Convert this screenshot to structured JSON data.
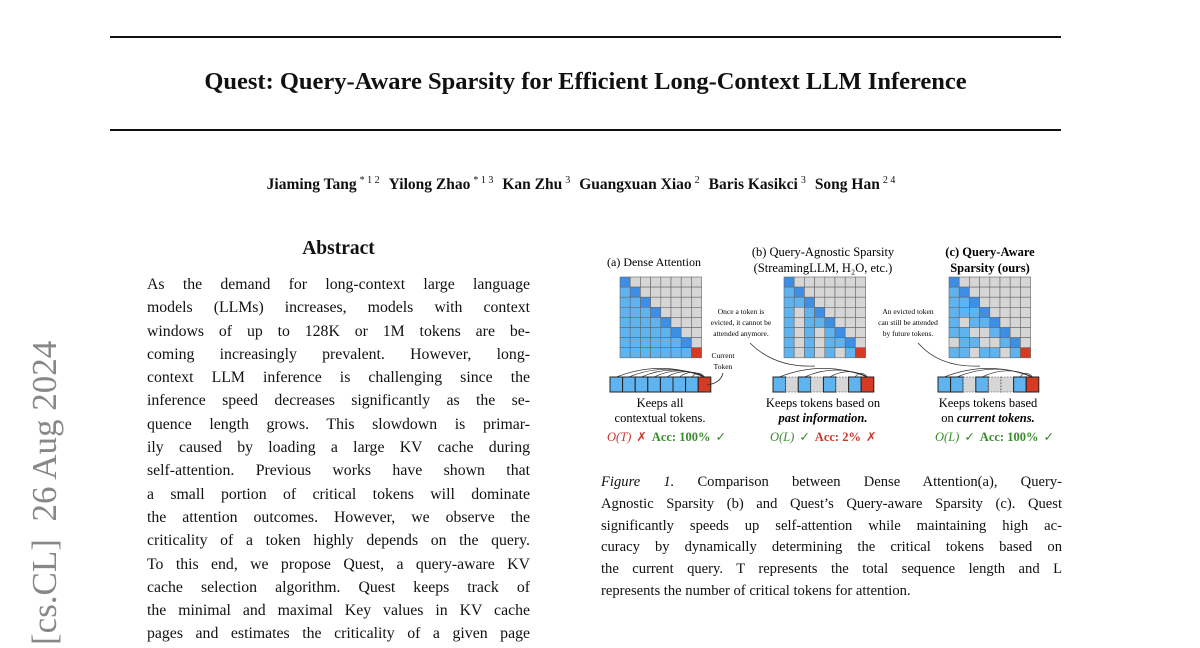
{
  "paper": {
    "title": "Quest: Query-Aware Sparsity for Efficient Long-Context LLM Inference",
    "authors": [
      {
        "name": "Jiaming Tang",
        "sup": "* 1 2"
      },
      {
        "name": "Yilong Zhao",
        "sup": "* 1 3"
      },
      {
        "name": "Kan Zhu",
        "sup": "3"
      },
      {
        "name": "Guangxuan Xiao",
        "sup": "2"
      },
      {
        "name": "Baris Kasikci",
        "sup": "3"
      },
      {
        "name": "Song Han",
        "sup": "2 4"
      }
    ],
    "arxiv_stamp": "[cs.CL]  26 Aug 2024",
    "abstract": {
      "heading": "Abstract",
      "lines": [
        "As the demand for long-context large language",
        "models (LLMs) increases, models with context",
        "windows of up to 128K or 1M tokens are be-",
        "coming increasingly prevalent. However, long-",
        "context LLM inference is challenging since the",
        "inference speed decreases significantly as the se-",
        "quence length grows. This slowdown is primar-",
        "ily caused by loading a large KV cache during",
        "self-attention. Previous works have shown that",
        "a small portion of critical tokens will dominate",
        "the attention outcomes. However, we observe the",
        "criticality of a token highly depends on the query.",
        "To this end, we propose Quest, a query-aware KV",
        "cache selection algorithm. Quest keeps track of",
        "the minimal and maximal Key values in KV cache",
        "pages and estimates the criticality of a given page"
      ]
    },
    "figure": {
      "panel_a": {
        "title": "(a) Dense Attention",
        "desc1": "Keeps all",
        "desc2": "contextual tokens.",
        "complexity": "O(T)",
        "complexity_mark": "✗",
        "acc": "Acc: 100%",
        "acc_mark": "✓"
      },
      "panel_b": {
        "title1": "(b) Query-Agnostic Sparsity",
        "title2": "(StreamingLLM, H₂O, etc.)",
        "desc1": "Keeps tokens based on",
        "desc2": "past information.",
        "complexity": "O(L)",
        "complexity_mark": "✓",
        "acc": "Acc: 2%",
        "acc_mark": "✗"
      },
      "panel_c": {
        "title1": "(c) Query-Aware",
        "title2": "Sparsity (ours)",
        "desc1": "Keeps tokens based",
        "desc2_prefix": "on ",
        "desc2": "current tokens.",
        "complexity": "O(L)",
        "complexity_mark": "✓",
        "acc": "Acc: 100%",
        "acc_mark": "✓"
      },
      "note_b": [
        "Once a token is",
        "evicted, it cannot be",
        "attended anymore."
      ],
      "note_c": [
        "An evicted token",
        "can still be attended",
        "by future tokens."
      ],
      "current_token": [
        "Current",
        "Token"
      ],
      "colors": {
        "kept": "#5fb4f0",
        "diag": "#3d8fe6",
        "evicted": "#d6d6d6",
        "current": "#d63a22",
        "good": "#3a8a2e",
        "bad": "#c9372c"
      }
    },
    "caption": {
      "label": "Figure 1.",
      "lines": [
        " Comparison between Dense Attention(a), Query-",
        "Agnostic Sparsity (b) and Quest’s Query-aware Sparsity (c). Quest",
        "significantly speeds up self-attention while maintaining high ac-",
        "curacy by dynamically determining the critical tokens based on",
        "the current query. T represents the total sequence length and L",
        "represents the number of critical tokens for attention."
      ]
    }
  }
}
